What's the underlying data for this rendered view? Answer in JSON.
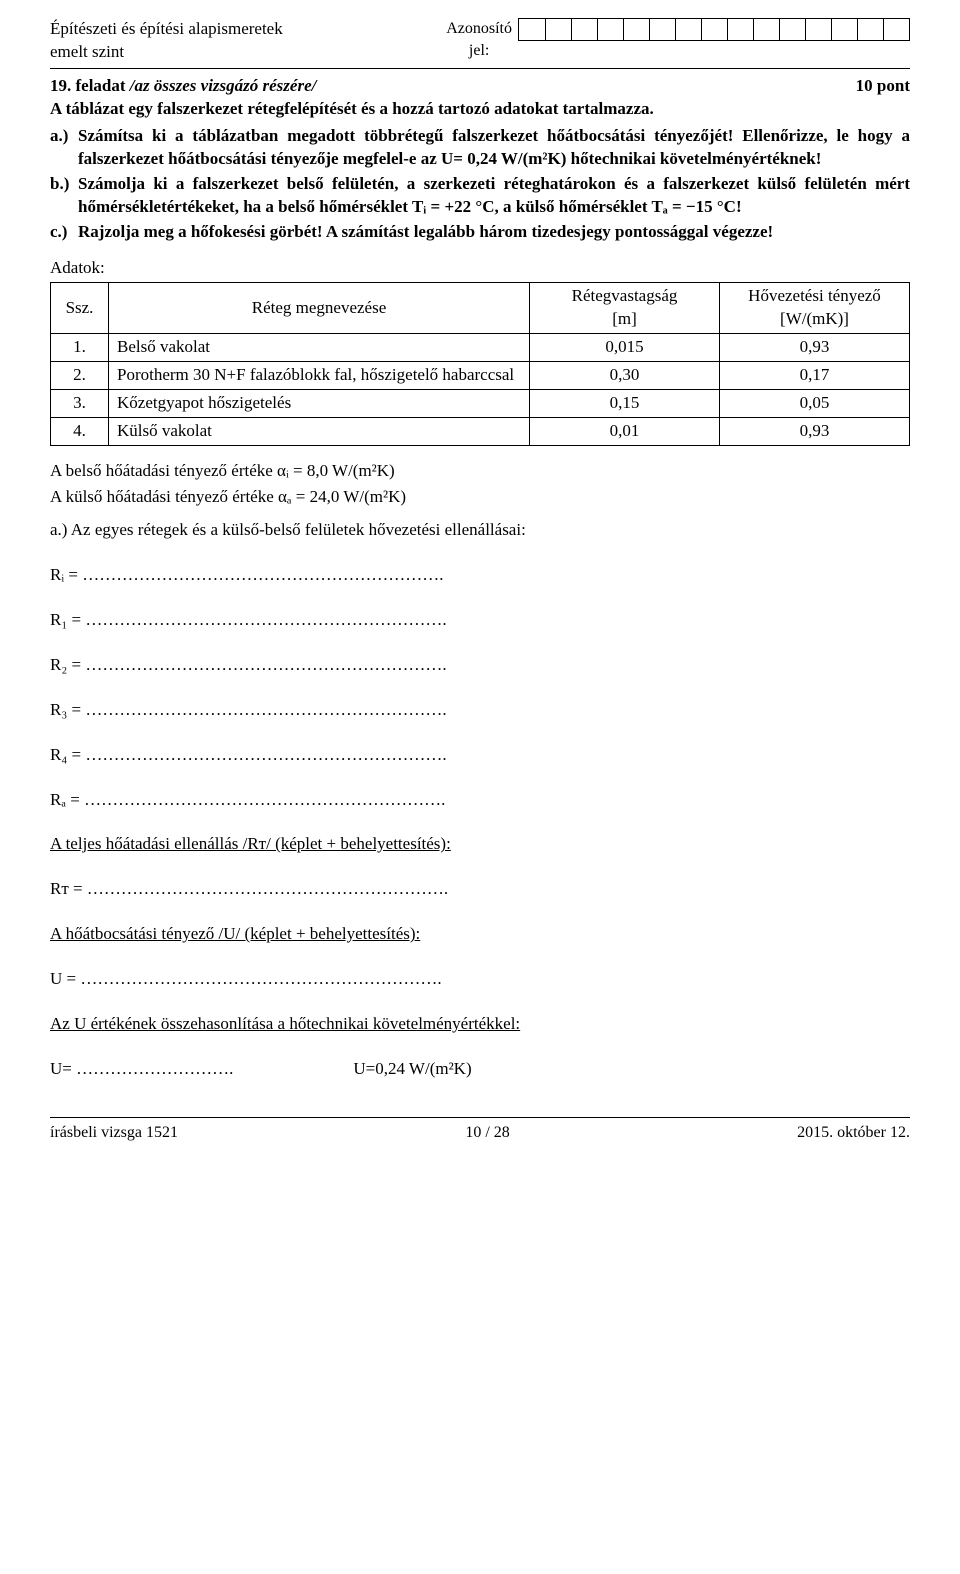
{
  "header": {
    "left_line1": "Építészeti és építési alapismeretek",
    "left_line2": "emelt szint",
    "center_line1": "Azonosító",
    "center_line2": "jel:"
  },
  "title": {
    "left_prefix": "19. feladat ",
    "left_italic": "/az összes vizsgázó részére/",
    "points": "10 pont"
  },
  "intro": "A táblázat egy falszerkezet rétegfelépítését és a hozzá tartozó adatokat tartalmazza.",
  "tasks": {
    "a_label": "a.)",
    "a_text": "Számítsa ki a táblázatban megadott többrétegű falszerkezet hőátbocsátási tényezőjét! Ellenőrizze, le hogy a falszerkezet hőátbocsátási tényezője megfelel-e az U= 0,24 W/(m²K) hőtechnikai követelményértéknek!",
    "b_label": "b.)",
    "b_text": "Számolja ki a falszerkezet belső felületén, a szerkezeti réteghatárokon és a falszerkezet külső felületén mért hőmérsékletértékeket, ha a belső hőmérséklet Tᵢ = +22 °C, a külső hőmérséklet Tₐ = −15 °C!",
    "c_label": "c.)",
    "c_text": "Rajzolja meg a hőfokesési görbét! A számítást legalább három tizedesjegy pontossággal végezze!"
  },
  "adatok_label": "Adatok:",
  "table": {
    "col_ssz": "Ssz.",
    "col_name": "Réteg megnevezése",
    "col_thick_l1": "Rétegvastagság",
    "col_thick_l2": "[m]",
    "col_cond_l1": "Hővezetési tényező",
    "col_cond_l2": "[W/(mK)]",
    "rows": [
      {
        "n": "1.",
        "name": "Belső vakolat",
        "thick": "0,015",
        "cond": "0,93"
      },
      {
        "n": "2.",
        "name": "Porotherm 30 N+F falazóblokk fal, hőszigetelő habarccsal",
        "thick": "0,30",
        "cond": "0,17"
      },
      {
        "n": "3.",
        "name": "Kőzetgyapot hőszigetelés",
        "thick": "0,15",
        "cond": "0,05"
      },
      {
        "n": "4.",
        "name": "Külső vakolat",
        "thick": "0,01",
        "cond": "0,93"
      }
    ]
  },
  "alpha_i": "A belső hőátadási tényező értéke αᵢ = 8,0 W/(m²K)",
  "alpha_a": "A külső hőátadási tényező értéke αₐ = 24,0 W/(m²K)",
  "section_a": "a.) Az egyes rétegek és a külső-belső felületek hővezetési ellenállásai:",
  "eq": {
    "Ri": "Rᵢ = ……………………………………………………….",
    "R1": "R₁ = ……………………………………………………….",
    "R2": "R₂ = ……………………………………………………….",
    "R3": "R₃ = ……………………………………………………….",
    "R4": "R₄ = ……………………………………………………….",
    "Ra": "Rₐ = ……………………………………………………….",
    "RT_label": "A teljes hőátadási ellenállás /Rᴛ/ (képlet + behelyettesítés):",
    "RT": "Rᴛ = ……………………………………………………….",
    "U_label": "A hőátbocsátási tényező /U/ (képlet + behelyettesítés):",
    "U": "U = ……………………………………………………….",
    "compare_label": "Az U értékének összehasonlítása a hőtechnikai követelményértékkel:",
    "U_final_left": "U= ……………………….",
    "U_final_right": "U=0,24 W/(m²K)"
  },
  "footer": {
    "left": "írásbeli vizsga 1521",
    "center": "10 / 28",
    "right": "2015. október 12."
  }
}
